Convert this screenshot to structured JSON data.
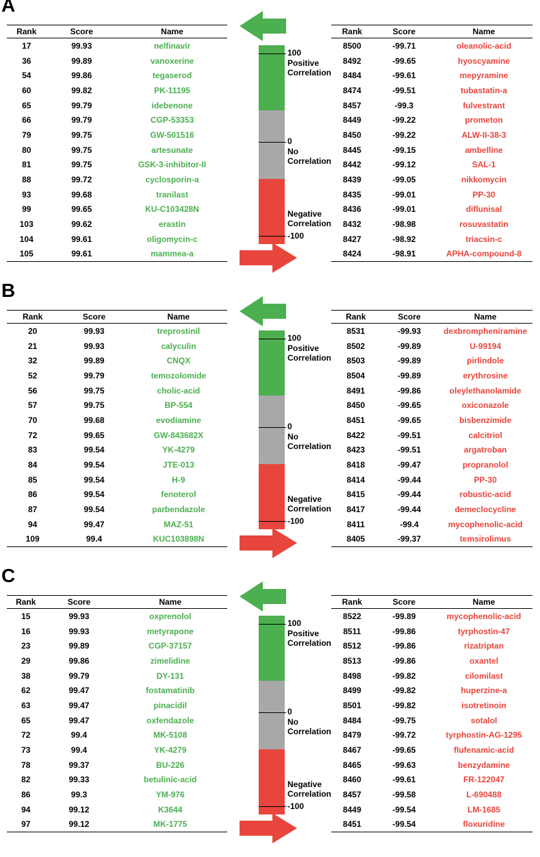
{
  "headers": {
    "rank": "Rank",
    "score": "Score",
    "name": "Name"
  },
  "scale_labels": {
    "pos_value": "100",
    "pos_text": "Positive Correlation",
    "zero_value": "0",
    "zero_text": "No Correlation",
    "neg_text": "Negative Correlation",
    "neg_value": "-100"
  },
  "colors": {
    "positive": "#4caf50",
    "neutral": "#a8a8a8",
    "negative": "#e8453c"
  },
  "panels": [
    {
      "label": "A",
      "positive": [
        {
          "rank": "17",
          "score": "99.93",
          "name": "nelfinavir"
        },
        {
          "rank": "36",
          "score": "99.89",
          "name": "vanoxerine"
        },
        {
          "rank": "54",
          "score": "99.86",
          "name": "tegaserod"
        },
        {
          "rank": "60",
          "score": "99.82",
          "name": "PK-11195"
        },
        {
          "rank": "65",
          "score": "99.79",
          "name": "idebenone"
        },
        {
          "rank": "66",
          "score": "99.79",
          "name": "CGP-53353"
        },
        {
          "rank": "79",
          "score": "99.75",
          "name": "GW-501516"
        },
        {
          "rank": "80",
          "score": "99.75",
          "name": "artesunate"
        },
        {
          "rank": "81",
          "score": "99.75",
          "name": "GSK-3-inhibitor-II"
        },
        {
          "rank": "88",
          "score": "99.72",
          "name": "cyclosporin-a"
        },
        {
          "rank": "93",
          "score": "99.68",
          "name": "tranilast"
        },
        {
          "rank": "99",
          "score": "99.65",
          "name": "KU-C103428N"
        },
        {
          "rank": "103",
          "score": "99.62",
          "name": "erastin"
        },
        {
          "rank": "104",
          "score": "99.61",
          "name": "oligomycin-c"
        },
        {
          "rank": "105",
          "score": "99.61",
          "name": "mammea-a"
        }
      ],
      "negative": [
        {
          "rank": "8500",
          "score": "-99.71",
          "name": "oleanolic-acid"
        },
        {
          "rank": "8492",
          "score": "-99.65",
          "name": "hyoscyamine"
        },
        {
          "rank": "8484",
          "score": "-99.61",
          "name": "mepyramine"
        },
        {
          "rank": "8474",
          "score": "-99.51",
          "name": "tubastatin-a"
        },
        {
          "rank": "8457",
          "score": "-99.3",
          "name": "fulvestrant"
        },
        {
          "rank": "8449",
          "score": "-99.22",
          "name": "prometon"
        },
        {
          "rank": "8450",
          "score": "-99.22",
          "name": "ALW-II-38-3"
        },
        {
          "rank": "8445",
          "score": "-99.15",
          "name": "ambelline"
        },
        {
          "rank": "8442",
          "score": "-99.12",
          "name": "SAL-1"
        },
        {
          "rank": "8439",
          "score": "-99.05",
          "name": "nikkomycin"
        },
        {
          "rank": "8435",
          "score": "-99.01",
          "name": "PP-30"
        },
        {
          "rank": "8436",
          "score": "-99.01",
          "name": "diflunisal"
        },
        {
          "rank": "8432",
          "score": "-98.98",
          "name": "rosuvastatin"
        },
        {
          "rank": "8427",
          "score": "-98.92",
          "name": "triacsin-c"
        },
        {
          "rank": "8424",
          "score": "-98.91",
          "name": "APHA-compound-8"
        }
      ]
    },
    {
      "label": "B",
      "positive": [
        {
          "rank": "20",
          "score": "99.93",
          "name": "treprostinil"
        },
        {
          "rank": "21",
          "score": "99.93",
          "name": "calyculin"
        },
        {
          "rank": "32",
          "score": "99.89",
          "name": "CNQX"
        },
        {
          "rank": "52",
          "score": "99.79",
          "name": "temozolomide"
        },
        {
          "rank": "56",
          "score": "99.75",
          "name": "cholic-acid"
        },
        {
          "rank": "57",
          "score": "99.75",
          "name": "BP-554"
        },
        {
          "rank": "70",
          "score": "99.68",
          "name": "evodiamine"
        },
        {
          "rank": "72",
          "score": "99.65",
          "name": "GW-843682X"
        },
        {
          "rank": "83",
          "score": "99.54",
          "name": "YK-4279"
        },
        {
          "rank": "84",
          "score": "99.54",
          "name": "JTE-013"
        },
        {
          "rank": "85",
          "score": "99.54",
          "name": "H-9"
        },
        {
          "rank": "86",
          "score": "99.54",
          "name": "fenoterol"
        },
        {
          "rank": "87",
          "score": "99.54",
          "name": "parbendazole"
        },
        {
          "rank": "94",
          "score": "99.47",
          "name": "MAZ-51"
        },
        {
          "rank": "109",
          "score": "99.4",
          "name": "KUC103898N"
        }
      ],
      "negative": [
        {
          "rank": "8531",
          "score": "-99.93",
          "name": "dexbrompheniramine"
        },
        {
          "rank": "8502",
          "score": "-99.89",
          "name": "U-99194"
        },
        {
          "rank": "8503",
          "score": "-99.89",
          "name": "pirlindole"
        },
        {
          "rank": "8504",
          "score": "-99.89",
          "name": "erythrosine"
        },
        {
          "rank": "8491",
          "score": "-99.86",
          "name": "oleylethanolamide"
        },
        {
          "rank": "8450",
          "score": "-99.65",
          "name": "oxiconazole"
        },
        {
          "rank": "8451",
          "score": "-99.65",
          "name": "bisbenzimide"
        },
        {
          "rank": "8422",
          "score": "-99.51",
          "name": "calcitriol"
        },
        {
          "rank": "8423",
          "score": "-99.51",
          "name": "argatroban"
        },
        {
          "rank": "8418",
          "score": "-99.47",
          "name": "propranolol"
        },
        {
          "rank": "8414",
          "score": "-99.44",
          "name": "PP-30"
        },
        {
          "rank": "8415",
          "score": "-99.44",
          "name": "robustic-acid"
        },
        {
          "rank": "8417",
          "score": "-99.44",
          "name": "demeclocycline"
        },
        {
          "rank": "8411",
          "score": "-99.4",
          "name": "mycophenolic-acid"
        },
        {
          "rank": "8405",
          "score": "-99.37",
          "name": "temsirolimus"
        }
      ]
    },
    {
      "label": "C",
      "positive": [
        {
          "rank": "15",
          "score": "99.93",
          "name": "oxprenolol"
        },
        {
          "rank": "16",
          "score": "99.93",
          "name": "metyrapone"
        },
        {
          "rank": "23",
          "score": "99.89",
          "name": "CGP-37157"
        },
        {
          "rank": "29",
          "score": "99.86",
          "name": "zimelidine"
        },
        {
          "rank": "38",
          "score": "99.79",
          "name": "DY-131"
        },
        {
          "rank": "62",
          "score": "99.47",
          "name": "fostamatinib"
        },
        {
          "rank": "63",
          "score": "99.47",
          "name": "pinacidil"
        },
        {
          "rank": "65",
          "score": "99.47",
          "name": "oxfendazole"
        },
        {
          "rank": "72",
          "score": "99.4",
          "name": "MK-5108"
        },
        {
          "rank": "73",
          "score": "99.4",
          "name": "YK-4279"
        },
        {
          "rank": "78",
          "score": "99.37",
          "name": "BU-226"
        },
        {
          "rank": "82",
          "score": "99.33",
          "name": "betulinic-acid"
        },
        {
          "rank": "86",
          "score": "99.3",
          "name": "YM-976"
        },
        {
          "rank": "94",
          "score": "99.12",
          "name": "K3644"
        },
        {
          "rank": "97",
          "score": "99.12",
          "name": "MK-1775"
        }
      ],
      "negative": [
        {
          "rank": "8522",
          "score": "-99.89",
          "name": "mycophenolic-acid"
        },
        {
          "rank": "8511",
          "score": "-99.86",
          "name": "tyrphostin-47"
        },
        {
          "rank": "8512",
          "score": "-99.86",
          "name": "rizatriptan"
        },
        {
          "rank": "8513",
          "score": "-99.86",
          "name": "oxantel"
        },
        {
          "rank": "8498",
          "score": "-99.82",
          "name": "cilomilast"
        },
        {
          "rank": "8499",
          "score": "-99.82",
          "name": "huperzine-a"
        },
        {
          "rank": "8501",
          "score": "-99.82",
          "name": "isotretinoin"
        },
        {
          "rank": "8484",
          "score": "-99.75",
          "name": "sotalol"
        },
        {
          "rank": "8479",
          "score": "-99.72",
          "name": "tyrphostin-AG-1295"
        },
        {
          "rank": "8467",
          "score": "-99.65",
          "name": "flufenamic-acid"
        },
        {
          "rank": "8465",
          "score": "-99.63",
          "name": "benzydamine"
        },
        {
          "rank": "8460",
          "score": "-99.61",
          "name": "FR-122047"
        },
        {
          "rank": "8457",
          "score": "-99.58",
          "name": "L-690488"
        },
        {
          "rank": "8449",
          "score": "-99.54",
          "name": "LM-1685"
        },
        {
          "rank": "8451",
          "score": "-99.54",
          "name": "floxuridine"
        }
      ]
    }
  ]
}
